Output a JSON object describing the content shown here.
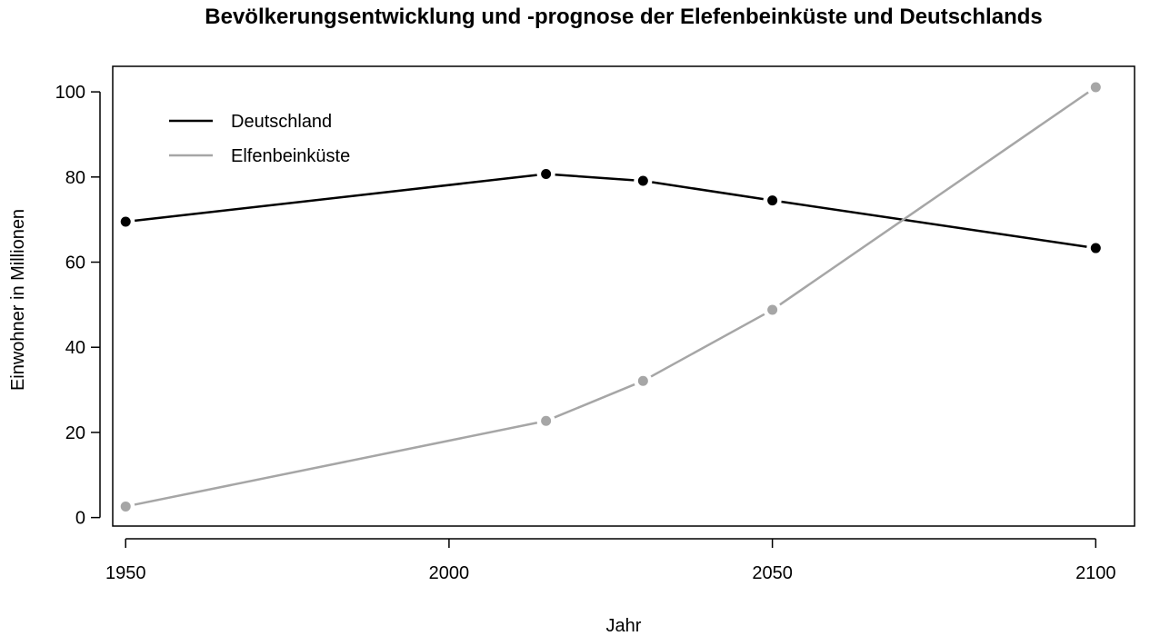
{
  "chart_data": {
    "type": "line",
    "title": "Bevölkerungsentwicklung und -prognose der Elefenbeinküste und Deutschlands",
    "xlabel": "Jahr",
    "ylabel": "Einwohner in Millionen",
    "xlim": [
      1948,
      2106
    ],
    "ylim": [
      -2,
      106
    ],
    "xticks": [
      1950,
      2000,
      2050,
      2100
    ],
    "yticks": [
      0,
      20,
      40,
      60,
      80,
      100
    ],
    "grid": false,
    "legend_position": "top-left",
    "series": [
      {
        "name": "Deutschland",
        "color": "#000000",
        "points": [
          {
            "x": 1950,
            "y": 69.5
          },
          {
            "x": 2015,
            "y": 80.7
          },
          {
            "x": 2030,
            "y": 79.1
          },
          {
            "x": 2050,
            "y": 74.5
          },
          {
            "x": 2100,
            "y": 63.3
          }
        ]
      },
      {
        "name": "Elfenbeinküste",
        "color": "#a6a6a6",
        "points": [
          {
            "x": 1950,
            "y": 2.6
          },
          {
            "x": 2015,
            "y": 22.7
          },
          {
            "x": 2030,
            "y": 32.1
          },
          {
            "x": 2050,
            "y": 48.8
          },
          {
            "x": 2100,
            "y": 101.1
          }
        ]
      }
    ]
  }
}
